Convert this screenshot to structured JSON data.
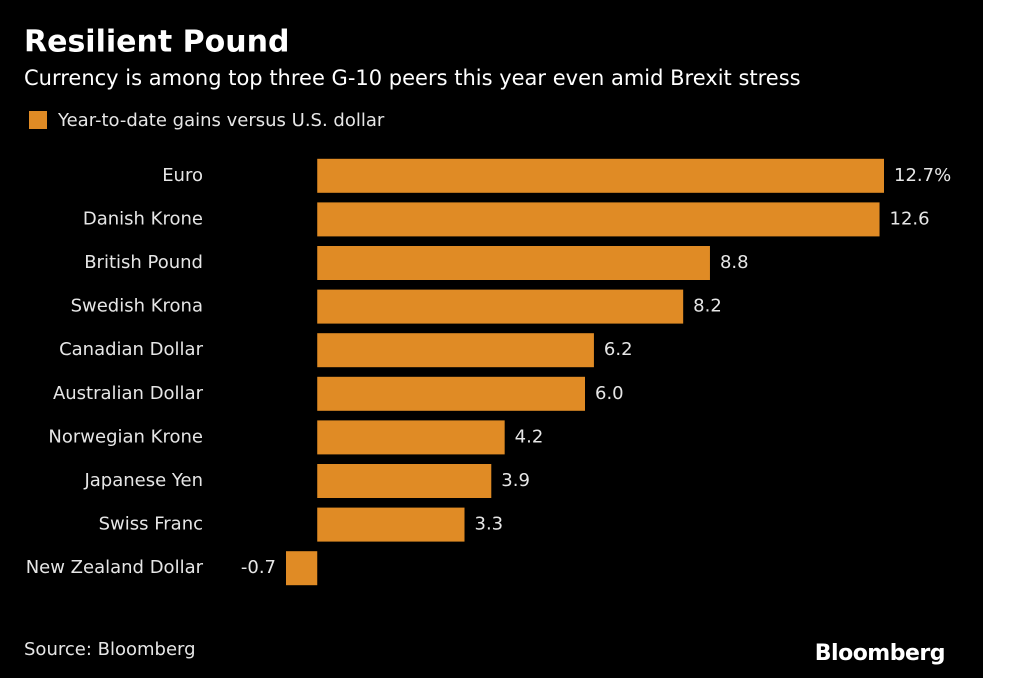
{
  "chart_data": {
    "type": "bar",
    "orientation": "horizontal",
    "title": "Resilient Pound",
    "subtitle": "Currency is among top three G-10 peers this year even amid Brexit stress",
    "series": [
      {
        "name": "Year-to-date gains versus U.S. dollar",
        "color": "#e08b25",
        "values": [
          12.7,
          12.6,
          8.8,
          8.2,
          6.2,
          6.0,
          4.2,
          3.9,
          3.3,
          -0.7
        ],
        "value_labels": [
          "12.7%",
          "12.6",
          "8.8",
          "8.2",
          "6.2",
          "6.0",
          "4.2",
          "3.9",
          "3.3",
          "-0.7"
        ]
      }
    ],
    "categories": [
      "Euro",
      "Danish Krone",
      "British Pound",
      "Swedish Krona",
      "Canadian Dollar",
      "Australian Dollar",
      "Norwegian Krone",
      "Japanese Yen",
      "Swiss Franc",
      "New Zealand Dollar"
    ],
    "xlim": [
      -0.7,
      12.7
    ],
    "source": "Source: Bloomberg",
    "brand": "Bloomberg"
  }
}
